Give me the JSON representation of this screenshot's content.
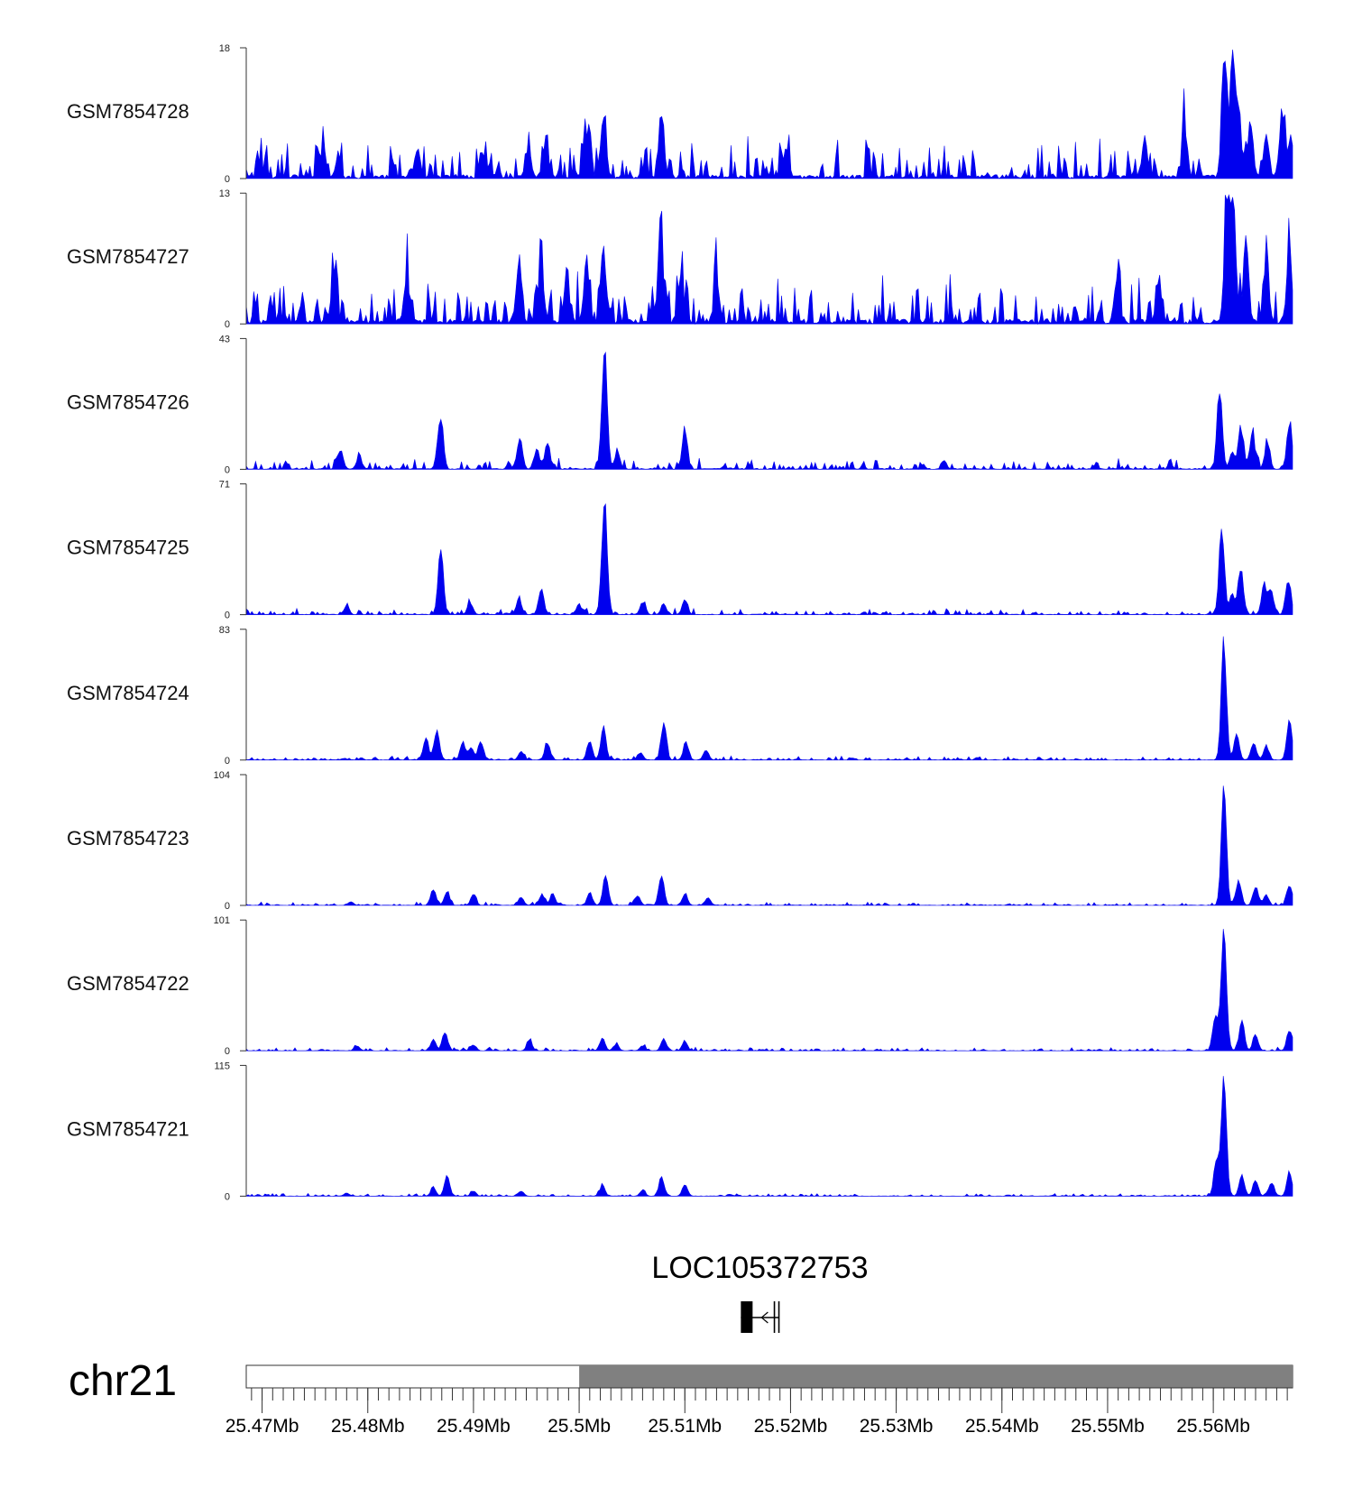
{
  "chart_data": {
    "type": "area",
    "title": "",
    "xlabel": "",
    "ylabel": "",
    "color": "#0000ee",
    "x_range_mb": [
      25.4685,
      25.5675
    ],
    "tracks": [
      {
        "name": "GSM7854728",
        "ymax": 18,
        "ymin": 0,
        "noise": 2.2,
        "noise_seed": 11,
        "peaks": [
          [
            25.5023,
            9
          ],
          [
            25.5078,
            9
          ],
          [
            25.4847,
            4.5
          ],
          [
            25.4908,
            4
          ],
          [
            25.4952,
            4.5
          ],
          [
            25.4968,
            5
          ],
          [
            25.5008,
            6
          ],
          [
            25.5535,
            6
          ],
          [
            25.5573,
            7
          ],
          [
            25.561,
            14
          ],
          [
            25.5618,
            18
          ],
          [
            25.5624,
            10
          ],
          [
            25.5635,
            8
          ],
          [
            25.565,
            6
          ],
          [
            25.5665,
            9
          ],
          [
            25.5673,
            6
          ],
          [
            25.4758,
            5
          ],
          [
            25.5196,
            4.5
          ]
        ]
      },
      {
        "name": "GSM7854727",
        "ymax": 13,
        "ymin": 0,
        "noise": 2.0,
        "noise_seed": 23,
        "peaks": [
          [
            25.5023,
            8
          ],
          [
            25.5077,
            10
          ],
          [
            25.4943,
            7
          ],
          [
            25.4964,
            6
          ],
          [
            25.4988,
            5
          ],
          [
            25.5007,
            6
          ],
          [
            25.5096,
            5
          ],
          [
            25.513,
            4.5
          ],
          [
            25.5509,
            5
          ],
          [
            25.5548,
            4.5
          ],
          [
            25.5613,
            13
          ],
          [
            25.5619,
            12
          ],
          [
            25.5631,
            9
          ],
          [
            25.565,
            7
          ],
          [
            25.5672,
            8
          ],
          [
            25.4768,
            5
          ],
          [
            25.4837,
            5
          ]
        ]
      },
      {
        "name": "GSM7854726",
        "ymax": 43,
        "ymin": 0,
        "noise": 1.4,
        "noise_seed": 37,
        "peaks": [
          [
            25.5024,
            43
          ],
          [
            25.4869,
            19
          ],
          [
            25.51,
            14
          ],
          [
            25.4944,
            11
          ],
          [
            25.497,
            9
          ],
          [
            25.496,
            7
          ],
          [
            25.5036,
            6
          ],
          [
            25.4774,
            7
          ],
          [
            25.4792,
            4
          ],
          [
            25.5606,
            28
          ],
          [
            25.5626,
            13
          ],
          [
            25.5637,
            12
          ],
          [
            25.5651,
            9
          ],
          [
            25.5672,
            16
          ],
          [
            25.5618,
            6
          ]
        ]
      },
      {
        "name": "GSM7854725",
        "ymax": 71,
        "ymin": 0,
        "noise": 1.2,
        "noise_seed": 41,
        "peaks": [
          [
            25.5024,
            71
          ],
          [
            25.4869,
            40
          ],
          [
            25.4964,
            15
          ],
          [
            25.4943,
            9
          ],
          [
            25.5,
            6
          ],
          [
            25.506,
            7
          ],
          [
            25.508,
            6
          ],
          [
            25.51,
            9
          ],
          [
            25.4897,
            7
          ],
          [
            25.478,
            5
          ],
          [
            25.5608,
            52
          ],
          [
            25.5626,
            28
          ],
          [
            25.5618,
            12
          ],
          [
            25.5648,
            18
          ],
          [
            25.5671,
            21
          ],
          [
            25.5655,
            13
          ]
        ]
      },
      {
        "name": "GSM7854724",
        "ymax": 83,
        "ymin": 0,
        "noise": 1.0,
        "noise_seed": 53,
        "peaks": [
          [
            25.4865,
            20
          ],
          [
            25.4855,
            15
          ],
          [
            25.489,
            12
          ],
          [
            25.4907,
            13
          ],
          [
            25.4898,
            8
          ],
          [
            25.4945,
            6
          ],
          [
            25.497,
            12
          ],
          [
            25.501,
            13
          ],
          [
            25.5023,
            22
          ],
          [
            25.508,
            25
          ],
          [
            25.5101,
            12
          ],
          [
            25.512,
            7
          ],
          [
            25.5058,
            5
          ],
          [
            25.561,
            83
          ],
          [
            25.5622,
            18
          ],
          [
            25.5638,
            12
          ],
          [
            25.565,
            10
          ],
          [
            25.5672,
            27
          ]
        ]
      },
      {
        "name": "GSM7854723",
        "ymax": 104,
        "ymin": 0,
        "noise": 1.0,
        "noise_seed": 67,
        "peaks": [
          [
            25.4862,
            14
          ],
          [
            25.4875,
            12
          ],
          [
            25.49,
            10
          ],
          [
            25.4945,
            7
          ],
          [
            25.4965,
            9
          ],
          [
            25.4975,
            10
          ],
          [
            25.501,
            11
          ],
          [
            25.5025,
            28
          ],
          [
            25.5055,
            8
          ],
          [
            25.5078,
            25
          ],
          [
            25.51,
            10
          ],
          [
            25.5122,
            7
          ],
          [
            25.4784,
            3
          ],
          [
            25.561,
            104
          ],
          [
            25.5624,
            22
          ],
          [
            25.564,
            16
          ],
          [
            25.565,
            9
          ],
          [
            25.5672,
            18
          ]
        ]
      },
      {
        "name": "GSM7854722",
        "ymax": 101,
        "ymin": 0,
        "noise": 1.0,
        "noise_seed": 79,
        "peaks": [
          [
            25.4862,
            10
          ],
          [
            25.4873,
            16
          ],
          [
            25.49,
            5
          ],
          [
            25.4953,
            9
          ],
          [
            25.5022,
            11
          ],
          [
            25.5035,
            5
          ],
          [
            25.508,
            10
          ],
          [
            25.51,
            8
          ],
          [
            25.506,
            4
          ],
          [
            25.479,
            4
          ],
          [
            25.561,
            101
          ],
          [
            25.5602,
            30
          ],
          [
            25.5627,
            26
          ],
          [
            25.564,
            13
          ],
          [
            25.5672,
            18
          ]
        ]
      },
      {
        "name": "GSM7854721",
        "ymax": 115,
        "ymin": 0,
        "noise": 0.9,
        "noise_seed": 97,
        "peaks": [
          [
            25.4862,
            8
          ],
          [
            25.4875,
            19
          ],
          [
            25.49,
            5
          ],
          [
            25.4945,
            5
          ],
          [
            25.5022,
            10
          ],
          [
            25.506,
            5
          ],
          [
            25.5078,
            18
          ],
          [
            25.51,
            11
          ],
          [
            25.478,
            3
          ],
          [
            25.561,
            115
          ],
          [
            25.5603,
            35
          ],
          [
            25.5627,
            20
          ],
          [
            25.564,
            16
          ],
          [
            25.5655,
            13
          ],
          [
            25.5672,
            22
          ]
        ]
      }
    ],
    "gene": {
      "name": "LOC105372753",
      "start_mb": 25.5153,
      "end_mb": 25.5189,
      "strand": "-"
    },
    "chromosome": "chr21",
    "shaded_region_mb": [
      25.5,
      25.5675
    ],
    "x_tick_labels": [
      "25.47Mb",
      "25.48Mb",
      "25.49Mb",
      "25.5Mb",
      "25.51Mb",
      "25.52Mb",
      "25.53Mb",
      "25.54Mb",
      "25.55Mb",
      "25.56Mb"
    ],
    "x_tick_values_mb": [
      25.47,
      25.48,
      25.49,
      25.5,
      25.51,
      25.52,
      25.53,
      25.54,
      25.55,
      25.56
    ]
  }
}
